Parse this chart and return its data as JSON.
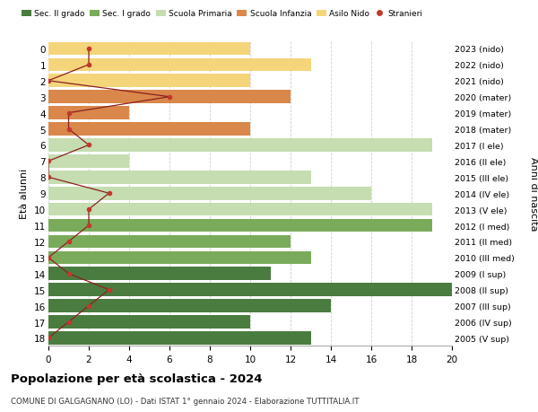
{
  "ages": [
    18,
    17,
    16,
    15,
    14,
    13,
    12,
    11,
    10,
    9,
    8,
    7,
    6,
    5,
    4,
    3,
    2,
    1,
    0
  ],
  "years": [
    "2005 (V sup)",
    "2006 (IV sup)",
    "2007 (III sup)",
    "2008 (II sup)",
    "2009 (I sup)",
    "2010 (III med)",
    "2011 (II med)",
    "2012 (I med)",
    "2013 (V ele)",
    "2014 (IV ele)",
    "2015 (III ele)",
    "2016 (II ele)",
    "2017 (I ele)",
    "2018 (mater)",
    "2019 (mater)",
    "2020 (mater)",
    "2021 (nido)",
    "2022 (nido)",
    "2023 (nido)"
  ],
  "bar_values": [
    13,
    10,
    14,
    20,
    11,
    13,
    12,
    19,
    19,
    16,
    13,
    4,
    19,
    10,
    4,
    12,
    10,
    13,
    10
  ],
  "bar_colors": [
    "#4a7c40",
    "#4a7c40",
    "#4a7c40",
    "#4a7c40",
    "#4a7c40",
    "#7aab5a",
    "#7aab5a",
    "#7aab5a",
    "#c5ddb0",
    "#c5ddb0",
    "#c5ddb0",
    "#c5ddb0",
    "#c5ddb0",
    "#d9874a",
    "#d9874a",
    "#d9874a",
    "#f5d57a",
    "#f5d57a",
    "#f5d57a"
  ],
  "stranieri_values": [
    0,
    1,
    2,
    3,
    1,
    0,
    1,
    2,
    2,
    3,
    0,
    0,
    2,
    1,
    1,
    6,
    0,
    2,
    2
  ],
  "title": "Popolazione per età scolastica - 2024",
  "subtitle": "COMUNE DI GALGAGNANO (LO) - Dati ISTAT 1° gennaio 2024 - Elaborazione TUTTITALIA.IT",
  "ylabel_left": "Età alunni",
  "ylabel_right": "Anni di nascita",
  "xlim": [
    0,
    20
  ],
  "xticks": [
    0,
    2,
    4,
    6,
    8,
    10,
    12,
    14,
    16,
    18,
    20
  ],
  "legend_labels": [
    "Sec. II grado",
    "Sec. I grado",
    "Scuola Primaria",
    "Scuola Infanzia",
    "Asilo Nido",
    "Stranieri"
  ],
  "legend_colors": [
    "#4a7c40",
    "#7aab5a",
    "#c5ddb0",
    "#d9874a",
    "#f5d57a",
    "#c0392b"
  ],
  "stranieri_color": "#c0392b",
  "line_color": "#8b2020",
  "grid_color": "#d0d0d0",
  "bg_color": "#ffffff"
}
